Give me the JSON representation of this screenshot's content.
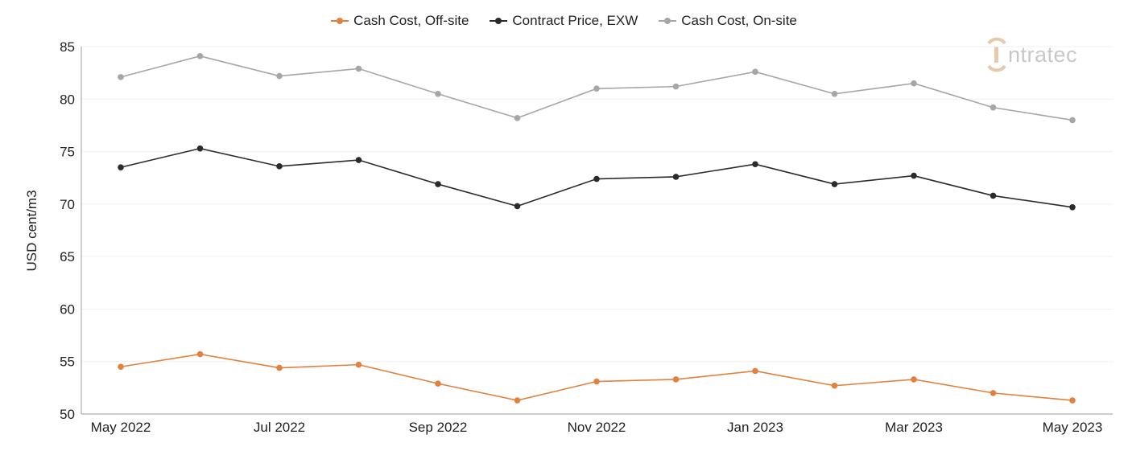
{
  "legend": {
    "items": [
      {
        "label": "Cash Cost, Off-site",
        "color": "#e0823e"
      },
      {
        "label": "Contract Price, EXW",
        "color": "#2b2b2b"
      },
      {
        "label": "Cash Cost, On-site",
        "color": "#a6a6a6"
      }
    ]
  },
  "logo": {
    "text": "ntratec",
    "icon": "intratec-logo-icon",
    "color": "#e8c9a9"
  },
  "chart_data": {
    "type": "line",
    "ylabel": "USD cent/m3",
    "xlabel": "",
    "ylim": [
      50,
      85
    ],
    "yticks": [
      50,
      55,
      60,
      65,
      70,
      75,
      80,
      85
    ],
    "x": [
      "May 2022",
      "Jun 2022",
      "Jul 2022",
      "Aug 2022",
      "Sep 2022",
      "Oct 2022",
      "Nov 2022",
      "Dec 2022",
      "Jan 2023",
      "Feb 2023",
      "Mar 2023",
      "Apr 2023",
      "May 2023"
    ],
    "xtick_labels": [
      "May 2022",
      "Jul 2022",
      "Sep 2022",
      "Nov 2022",
      "Jan 2023",
      "Mar 2023",
      "May 2023"
    ],
    "grid": true,
    "legend_position": "top-center",
    "series": [
      {
        "name": "Cash Cost, Off-site",
        "color": "#e0823e",
        "values": [
          54.5,
          55.7,
          54.4,
          54.7,
          52.9,
          51.3,
          53.1,
          53.3,
          54.1,
          52.7,
          53.3,
          52.0,
          51.3
        ]
      },
      {
        "name": "Contract Price, EXW",
        "color": "#2b2b2b",
        "values": [
          73.5,
          75.3,
          73.6,
          74.2,
          71.9,
          69.8,
          72.4,
          72.6,
          73.8,
          71.9,
          72.7,
          70.8,
          69.7
        ]
      },
      {
        "name": "Cash Cost, On-site",
        "color": "#a6a6a6",
        "values": [
          82.1,
          84.1,
          82.2,
          82.9,
          80.5,
          78.2,
          81.0,
          81.2,
          82.6,
          80.5,
          81.5,
          79.2,
          78.0
        ]
      }
    ]
  }
}
